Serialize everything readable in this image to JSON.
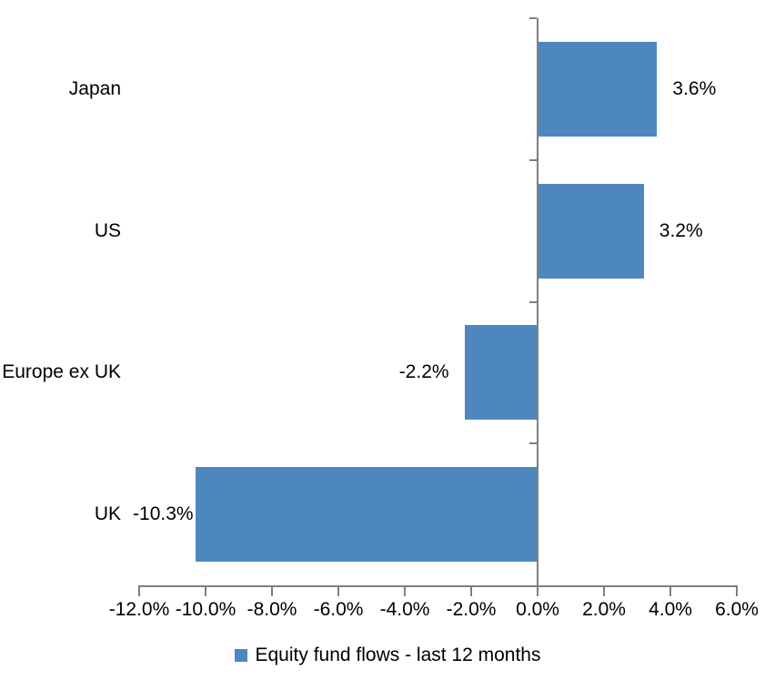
{
  "chart_data": {
    "type": "bar",
    "orientation": "horizontal",
    "title": "",
    "categories": [
      "Japan",
      "US",
      "Europe ex UK",
      "UK"
    ],
    "series": [
      {
        "name": "Equity fund flows - last 12 months",
        "values": [
          3.6,
          3.2,
          -2.2,
          -10.3
        ],
        "data_labels": [
          "3.6%",
          "3.2%",
          "-2.2%",
          "-10.3%"
        ]
      }
    ],
    "xlim": [
      -12,
      6
    ],
    "x_ticks": [
      -12,
      -10,
      -8,
      -6,
      -4,
      -2,
      0,
      2,
      4,
      6
    ],
    "x_tick_labels": [
      "-12.0%",
      "-10.0%",
      "-8.0%",
      "-6.0%",
      "-4.0%",
      "-2.0%",
      "0.0%",
      "2.0%",
      "4.0%",
      "6.0%"
    ],
    "grid": false,
    "legend_position": "bottom",
    "legend_label": "Equity fund flows - last 12 months",
    "colors": {
      "bar": "#4E87BE",
      "axis": "#7F7F7F",
      "text": "#000000",
      "background": "#FFFFFF"
    }
  }
}
